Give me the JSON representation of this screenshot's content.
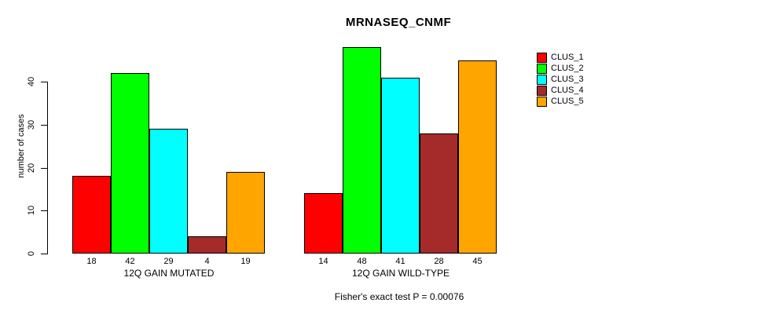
{
  "chart_data": {
    "type": "bar",
    "title": "MRNASEQ_CNMF",
    "ylabel": "number of cases",
    "caption": "Fisher's exact test P = 0.00076",
    "yticks": [
      0,
      10,
      20,
      30,
      40
    ],
    "ylim": [
      0,
      48
    ],
    "grid": false,
    "legend_position": "right",
    "value_labels_shown": true,
    "series": [
      {
        "name": "CLUS_1",
        "color": "#FF0000"
      },
      {
        "name": "CLUS_2",
        "color": "#00FF00"
      },
      {
        "name": "CLUS_3",
        "color": "#00FFFF"
      },
      {
        "name": "CLUS_4",
        "color": "#A52A2A"
      },
      {
        "name": "CLUS_5",
        "color": "#FFA500"
      }
    ],
    "groups": [
      {
        "label": "12Q GAIN MUTATED",
        "values": [
          18,
          42,
          29,
          4,
          19
        ]
      },
      {
        "label": "12Q GAIN WILD-TYPE",
        "values": [
          14,
          48,
          41,
          28,
          45
        ]
      }
    ]
  }
}
